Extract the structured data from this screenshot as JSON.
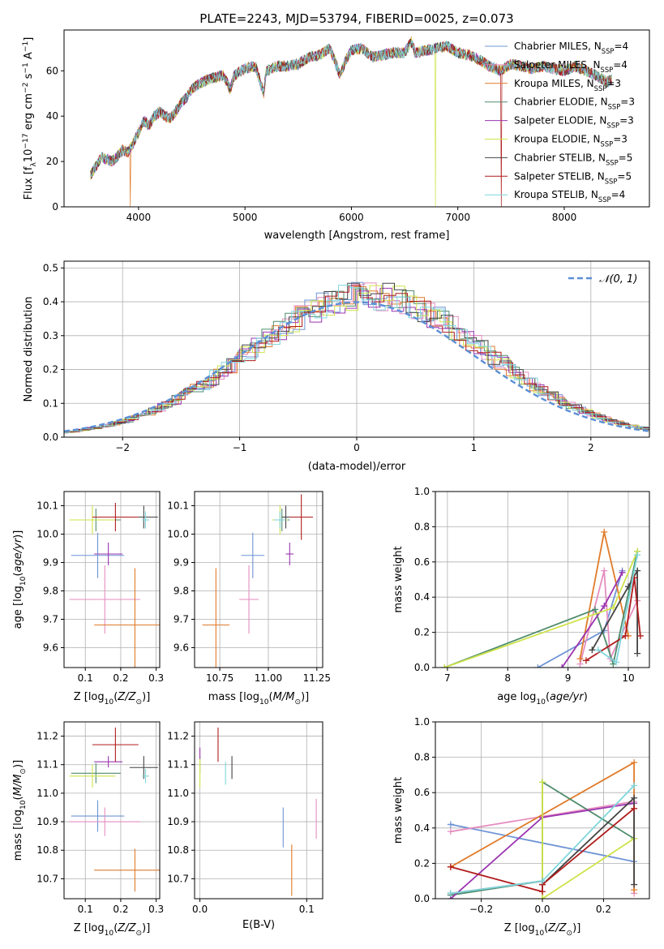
{
  "figure": {
    "title": "PLATE=2243, MJD=53794, FIBERID=0025, z=0.073"
  },
  "colors": {
    "Chabrier MILES": "#6f94d6",
    "Salpeter MILES": "#e58dbf",
    "Kroupa MILES": "#e07b2a",
    "Chabrier ELODIE": "#4f8c6c",
    "Salpeter ELODIE": "#9a34b0",
    "Kroupa ELODIE": "#cfe34a",
    "Chabrier STELIB": "#444444",
    "Salpeter STELIB": "#b01c1c",
    "Kroupa STELIB": "#7fd6dc",
    "normal": "#5b8fd6"
  },
  "chart_data": [
    {
      "id": "spectrum",
      "type": "line",
      "xlabel": "wavelength [Angstrom, rest frame]",
      "ylabel": "Flux [f_λ10^{-17} erg cm^{-2} s^{-1} A^{-1}]",
      "xlim": [
        3300,
        8800
      ],
      "ylim": [
        0,
        78
      ],
      "xticks": [
        4000,
        5000,
        6000,
        7000,
        8000
      ],
      "yticks": [
        0,
        20,
        40,
        60
      ],
      "legend_position": "top-right",
      "data_x": [
        3550,
        3600,
        3650,
        3700,
        3750,
        3800,
        3850,
        3900,
        3950,
        4000,
        4050,
        4100,
        4150,
        4200,
        4250,
        4300,
        4350,
        4400,
        4450,
        4500,
        4600,
        4700,
        4800,
        4861,
        4900,
        5000,
        5100,
        5175,
        5200,
        5300,
        5400,
        5500,
        5600,
        5700,
        5800,
        5893,
        5950,
        6000,
        6100,
        6200,
        6300,
        6400,
        6500,
        6563,
        6600,
        6700,
        6800,
        6900,
        7000,
        7100,
        7200,
        7300,
        7400,
        7500,
        7600,
        7700,
        7800,
        7900,
        8000,
        8100,
        8200,
        8300,
        8400,
        8450
      ],
      "data_y": [
        14,
        18,
        22,
        21,
        20,
        22,
        25,
        24,
        28,
        33,
        38,
        36,
        40,
        42,
        40,
        39,
        42,
        46,
        48,
        52,
        55,
        57,
        58,
        52,
        58,
        61,
        62,
        50,
        60,
        62,
        62,
        63,
        66,
        67,
        70,
        58,
        65,
        69,
        70,
        66,
        67,
        68,
        68,
        73,
        68,
        69,
        70,
        71,
        68,
        67,
        65,
        62,
        60,
        63,
        62,
        61,
        62,
        61,
        60,
        62,
        60,
        58,
        55,
        56
      ],
      "series": [
        {
          "name": "Chabrier MILES",
          "n_ssp": "4"
        },
        {
          "name": "Salpeter MILES",
          "n_ssp": "4"
        },
        {
          "name": "Kroupa MILES",
          "n_ssp": "3"
        },
        {
          "name": "Chabrier ELODIE",
          "n_ssp": "3"
        },
        {
          "name": "Salpeter ELODIE",
          "n_ssp": "3"
        },
        {
          "name": "Kroupa ELODIE",
          "n_ssp": "3"
        },
        {
          "name": "Chabrier STELIB",
          "n_ssp": "5"
        },
        {
          "name": "Salpeter STELIB",
          "n_ssp": "5"
        },
        {
          "name": "Kroupa STELIB",
          "n_ssp": "4"
        }
      ],
      "drops": [
        {
          "x": 3920,
          "series": "Kroupa MILES"
        },
        {
          "x": 6790,
          "series": "Kroupa ELODIE"
        },
        {
          "x": 7410,
          "series": "Salpeter STELIB"
        }
      ]
    },
    {
      "id": "residual-histogram",
      "type": "histogram",
      "xlabel": "(data-model)/error",
      "ylabel": "Normed distribution",
      "xlim": [
        -2.5,
        2.5
      ],
      "ylim": [
        0,
        0.52
      ],
      "xticks": [
        -2,
        -1,
        0,
        1,
        2
      ],
      "yticks": [
        0.0,
        0.1,
        0.2,
        0.3,
        0.4,
        0.5
      ],
      "grid": true,
      "legend_position": "top-right",
      "legend_label": "𝒩(0, 1)",
      "bin_width": 0.1,
      "x_start": -2.5,
      "approx_histogram": [
        0.02,
        0.03,
        0.04,
        0.04,
        0.05,
        0.06,
        0.07,
        0.08,
        0.09,
        0.1,
        0.11,
        0.12,
        0.14,
        0.15,
        0.17,
        0.18,
        0.2,
        0.22,
        0.24,
        0.26,
        0.27,
        0.29,
        0.31,
        0.32,
        0.34,
        0.36,
        0.37,
        0.38,
        0.39,
        0.4,
        0.41,
        0.43,
        0.45,
        0.47,
        0.48,
        0.46,
        0.47,
        0.46,
        0.45,
        0.44,
        0.43,
        0.42,
        0.41,
        0.4,
        0.38,
        0.36,
        0.34,
        0.32,
        0.3,
        0.28,
        0.26,
        0.24,
        0.22,
        0.2,
        0.18,
        0.16,
        0.14,
        0.12,
        0.1,
        0.08,
        0.07,
        0.06,
        0.05,
        0.05,
        0.04,
        0.04,
        0.03,
        0.03,
        0.03,
        0.02
      ],
      "hist_start": -2.5,
      "hist_step": 0.0725,
      "normal": {
        "mean": 0,
        "sigma": 1
      }
    },
    {
      "id": "age-vs-z",
      "type": "scatter",
      "xlabel": "Z [log10(Z/Z☉)]",
      "ylabel": "age [log10(age/yr)]",
      "xlim": [
        0.04,
        0.31
      ],
      "ylim": [
        9.53,
        10.15
      ],
      "xticks": [
        0.1,
        0.2,
        0.3
      ],
      "yticks": [
        9.6,
        9.7,
        9.8,
        9.9,
        10.0,
        10.1
      ],
      "grid": true,
      "points": [
        {
          "series": "Chabrier MILES",
          "x": 0.135,
          "xerr": 0.075,
          "y": 9.925,
          "yerr": 0.08
        },
        {
          "series": "Salpeter MILES",
          "x": 0.155,
          "xerr": 0.1,
          "y": 9.77,
          "yerr": 0.12
        },
        {
          "series": "Kroupa MILES",
          "x": 0.24,
          "xerr": 0.115,
          "y": 9.68,
          "yerr": 0.2
        },
        {
          "series": "Chabrier ELODIE",
          "x": 0.13,
          "xerr": 0.07,
          "y": 10.05,
          "yerr": 0.04
        },
        {
          "series": "Salpeter ELODIE",
          "x": 0.165,
          "xerr": 0.04,
          "y": 9.93,
          "yerr": 0.04
        },
        {
          "series": "Kroupa ELODIE",
          "x": 0.12,
          "xerr": 0.065,
          "y": 10.05,
          "yerr": 0.05
        },
        {
          "series": "Chabrier STELIB",
          "x": 0.265,
          "xerr": 0.04,
          "y": 10.06,
          "yerr": 0.04
        },
        {
          "series": "Salpeter STELIB",
          "x": 0.185,
          "xerr": 0.065,
          "y": 10.06,
          "yerr": 0.05
        },
        {
          "series": "Kroupa STELIB",
          "x": 0.27,
          "xerr": 0.01,
          "y": 10.05,
          "yerr": 0.03
        }
      ]
    },
    {
      "id": "age-vs-mass",
      "type": "scatter",
      "xlabel": "mass [log10(M/M☉)]",
      "ylabel": "",
      "xlim": [
        10.62,
        11.28
      ],
      "ylim": [
        9.53,
        10.15
      ],
      "xticks": [
        10.75,
        11.0,
        11.25
      ],
      "yticks": [
        9.6,
        9.7,
        9.8,
        9.9,
        10.0,
        10.1
      ],
      "grid": true,
      "points": [
        {
          "series": "Chabrier MILES",
          "x": 10.92,
          "xerr": 0.06,
          "y": 9.925,
          "yerr": 0.08
        },
        {
          "series": "Salpeter MILES",
          "x": 10.9,
          "xerr": 0.05,
          "y": 9.77,
          "yerr": 0.12
        },
        {
          "series": "Kroupa MILES",
          "x": 10.73,
          "xerr": 0.07,
          "y": 9.68,
          "yerr": 0.2
        },
        {
          "series": "Chabrier ELODIE",
          "x": 11.07,
          "xerr": 0.04,
          "y": 10.05,
          "yerr": 0.04
        },
        {
          "series": "Salpeter ELODIE",
          "x": 11.11,
          "xerr": 0.02,
          "y": 9.93,
          "yerr": 0.04
        },
        {
          "series": "Kroupa ELODIE",
          "x": 11.06,
          "xerr": 0.04,
          "y": 10.05,
          "yerr": 0.05
        },
        {
          "series": "Chabrier STELIB",
          "x": 11.09,
          "xerr": 0.02,
          "y": 10.06,
          "yerr": 0.04
        },
        {
          "series": "Salpeter STELIB",
          "x": 11.17,
          "xerr": 0.06,
          "y": 10.06,
          "yerr": 0.08
        },
        {
          "series": "Kroupa STELIB",
          "x": 11.06,
          "xerr": 0.03,
          "y": 10.05,
          "yerr": 0.03
        }
      ]
    },
    {
      "id": "mass-weight-vs-age",
      "type": "line",
      "xlabel": "age log10(age/yr)",
      "ylabel": "mass weight",
      "xlim": [
        6.8,
        10.35
      ],
      "ylim": [
        0,
        1.0
      ],
      "xticks": [
        7,
        8,
        9,
        10
      ],
      "yticks": [
        0.0,
        0.2,
        0.4,
        0.6,
        0.8,
        1.0
      ],
      "grid": true,
      "series": [
        {
          "name": "Chabrier MILES",
          "x": [
            8.5,
            9.6,
            9.9
          ],
          "y": [
            0.0,
            0.21,
            0.55
          ]
        },
        {
          "name": "Salpeter MILES",
          "x": [
            9.2,
            9.6,
            9.7,
            10.15
          ],
          "y": [
            0.02,
            0.55,
            0.05,
            0.38
          ]
        },
        {
          "name": "Kroupa MILES",
          "x": [
            9.2,
            9.6,
            10.0
          ],
          "y": [
            0.05,
            0.77,
            0.18
          ]
        },
        {
          "name": "Chabrier ELODIE",
          "x": [
            6.95,
            9.45,
            9.75,
            10.15
          ],
          "y": [
            0.0,
            0.33,
            0.02,
            0.66
          ]
        },
        {
          "name": "Salpeter ELODIE",
          "x": [
            8.9,
            9.6,
            9.9
          ],
          "y": [
            0.0,
            0.35,
            0.54
          ]
        },
        {
          "name": "Kroupa ELODIE",
          "x": [
            6.95,
            9.75,
            10.15
          ],
          "y": [
            0.0,
            0.34,
            0.66
          ]
        },
        {
          "name": "Chabrier STELIB",
          "x": [
            9.4,
            10.0,
            10.15,
            10.15
          ],
          "y": [
            0.1,
            0.46,
            0.55,
            0.08
          ]
        },
        {
          "name": "Salpeter STELIB",
          "x": [
            9.3,
            9.95,
            10.1,
            10.2
          ],
          "y": [
            0.04,
            0.18,
            0.51,
            0.18
          ]
        },
        {
          "name": "Kroupa STELIB",
          "x": [
            9.5,
            9.8,
            10.15
          ],
          "y": [
            0.1,
            0.03,
            0.64
          ]
        }
      ]
    },
    {
      "id": "mass-vs-z",
      "type": "scatter",
      "xlabel": "Z [log10(Z/Z☉)]",
      "ylabel": "mass [log10(M/M☉)]",
      "xlim": [
        0.04,
        0.31
      ],
      "ylim": [
        10.63,
        11.25
      ],
      "xticks": [
        0.1,
        0.2,
        0.3
      ],
      "yticks": [
        10.7,
        10.8,
        10.9,
        11.0,
        11.1,
        11.2
      ],
      "grid": true,
      "points": [
        {
          "series": "Chabrier MILES",
          "x": 0.135,
          "xerr": 0.075,
          "y": 10.92,
          "yerr": 0.055
        },
        {
          "series": "Salpeter MILES",
          "x": 0.155,
          "xerr": 0.1,
          "y": 10.9,
          "yerr": 0.05
        },
        {
          "series": "Kroupa MILES",
          "x": 0.24,
          "xerr": 0.115,
          "y": 10.73,
          "yerr": 0.075
        },
        {
          "series": "Chabrier ELODIE",
          "x": 0.13,
          "xerr": 0.07,
          "y": 11.07,
          "yerr": 0.035
        },
        {
          "series": "Salpeter ELODIE",
          "x": 0.165,
          "xerr": 0.04,
          "y": 11.11,
          "yerr": 0.02
        },
        {
          "series": "Kroupa ELODIE",
          "x": 0.12,
          "xerr": 0.065,
          "y": 11.06,
          "yerr": 0.04
        },
        {
          "series": "Chabrier STELIB",
          "x": 0.265,
          "xerr": 0.04,
          "y": 11.09,
          "yerr": 0.04
        },
        {
          "series": "Salpeter STELIB",
          "x": 0.185,
          "xerr": 0.065,
          "y": 11.17,
          "yerr": 0.06
        },
        {
          "series": "Kroupa STELIB",
          "x": 0.27,
          "xerr": 0.01,
          "y": 11.06,
          "yerr": 0.025
        }
      ]
    },
    {
      "id": "mass-vs-ebv",
      "type": "scatter",
      "xlabel": "E(B-V)",
      "ylabel": "",
      "xlim": [
        -0.005,
        0.115
      ],
      "ylim": [
        10.63,
        11.25
      ],
      "xticks": [
        0.0,
        0.1
      ],
      "yticks": [
        10.7,
        10.8,
        10.9,
        11.0,
        11.1,
        11.2
      ],
      "grid": true,
      "points": [
        {
          "series": "Chabrier MILES",
          "x": 0.078,
          "xerr": 0,
          "y": 10.88,
          "yerr": 0.07
        },
        {
          "series": "Salpeter MILES",
          "x": 0.109,
          "xerr": 0,
          "y": 10.91,
          "yerr": 0.07
        },
        {
          "series": "Kroupa MILES",
          "x": 0.086,
          "xerr": 0,
          "y": 10.73,
          "yerr": 0.09
        },
        {
          "series": "Chabrier ELODIE",
          "x": 0.0,
          "xerr": 0,
          "y": 11.1,
          "yerr": 0.03
        },
        {
          "series": "Salpeter ELODIE",
          "x": 0.0,
          "xerr": 0,
          "y": 11.14,
          "yerr": 0.02
        },
        {
          "series": "Kroupa ELODIE",
          "x": 0.0,
          "xerr": 0,
          "y": 11.07,
          "yerr": 0.05
        },
        {
          "series": "Chabrier STELIB",
          "x": 0.03,
          "xerr": 0,
          "y": 11.09,
          "yerr": 0.04
        },
        {
          "series": "Salpeter STELIB",
          "x": 0.017,
          "xerr": 0,
          "y": 11.17,
          "yerr": 0.06
        },
        {
          "series": "Kroupa STELIB",
          "x": 0.024,
          "xerr": 0,
          "y": 11.07,
          "yerr": 0.04
        }
      ]
    },
    {
      "id": "mass-weight-vs-z",
      "type": "line",
      "xlabel": "Z [log10(Z/Z☉)]",
      "ylabel": "mass weight",
      "xlim": [
        -0.35,
        0.35
      ],
      "ylim": [
        0,
        1.0
      ],
      "xticks": [
        -0.2,
        0.0,
        0.2
      ],
      "yticks": [
        0.0,
        0.2,
        0.4,
        0.6,
        0.8,
        1.0
      ],
      "grid": true,
      "series": [
        {
          "name": "Chabrier MILES",
          "x": [
            -0.3,
            0.3
          ],
          "y": [
            0.42,
            0.21
          ]
        },
        {
          "name": "Salpeter MILES",
          "x": [
            -0.3,
            0.3,
            0.3
          ],
          "y": [
            0.38,
            0.55,
            0.03
          ]
        },
        {
          "name": "Kroupa MILES",
          "x": [
            -0.3,
            0.3,
            0.3
          ],
          "y": [
            0.18,
            0.77,
            0.05
          ]
        },
        {
          "name": "Chabrier ELODIE",
          "x": [
            -0.3,
            0.0,
            0.0,
            0.3
          ],
          "y": [
            0.02,
            0.1,
            0.66,
            0.34
          ]
        },
        {
          "name": "Salpeter ELODIE",
          "x": [
            -0.3,
            0.0,
            0.3
          ],
          "y": [
            0.0,
            0.46,
            0.54
          ]
        },
        {
          "name": "Kroupa ELODIE",
          "x": [
            0.0,
            0.0,
            0.3
          ],
          "y": [
            0.66,
            0.0,
            0.34
          ]
        },
        {
          "name": "Chabrier STELIB",
          "x": [
            -0.3,
            0.0,
            0.0,
            0.3,
            0.3
          ],
          "y": [
            0.03,
            0.1,
            0.08,
            0.57,
            0.08
          ]
        },
        {
          "name": "Salpeter STELIB",
          "x": [
            -0.3,
            0.0,
            0.0,
            0.3
          ],
          "y": [
            0.18,
            0.04,
            0.08,
            0.51
          ]
        },
        {
          "name": "Kroupa STELIB",
          "x": [
            -0.3,
            0.0,
            0.3
          ],
          "y": [
            0.03,
            0.1,
            0.64
          ]
        }
      ]
    }
  ]
}
